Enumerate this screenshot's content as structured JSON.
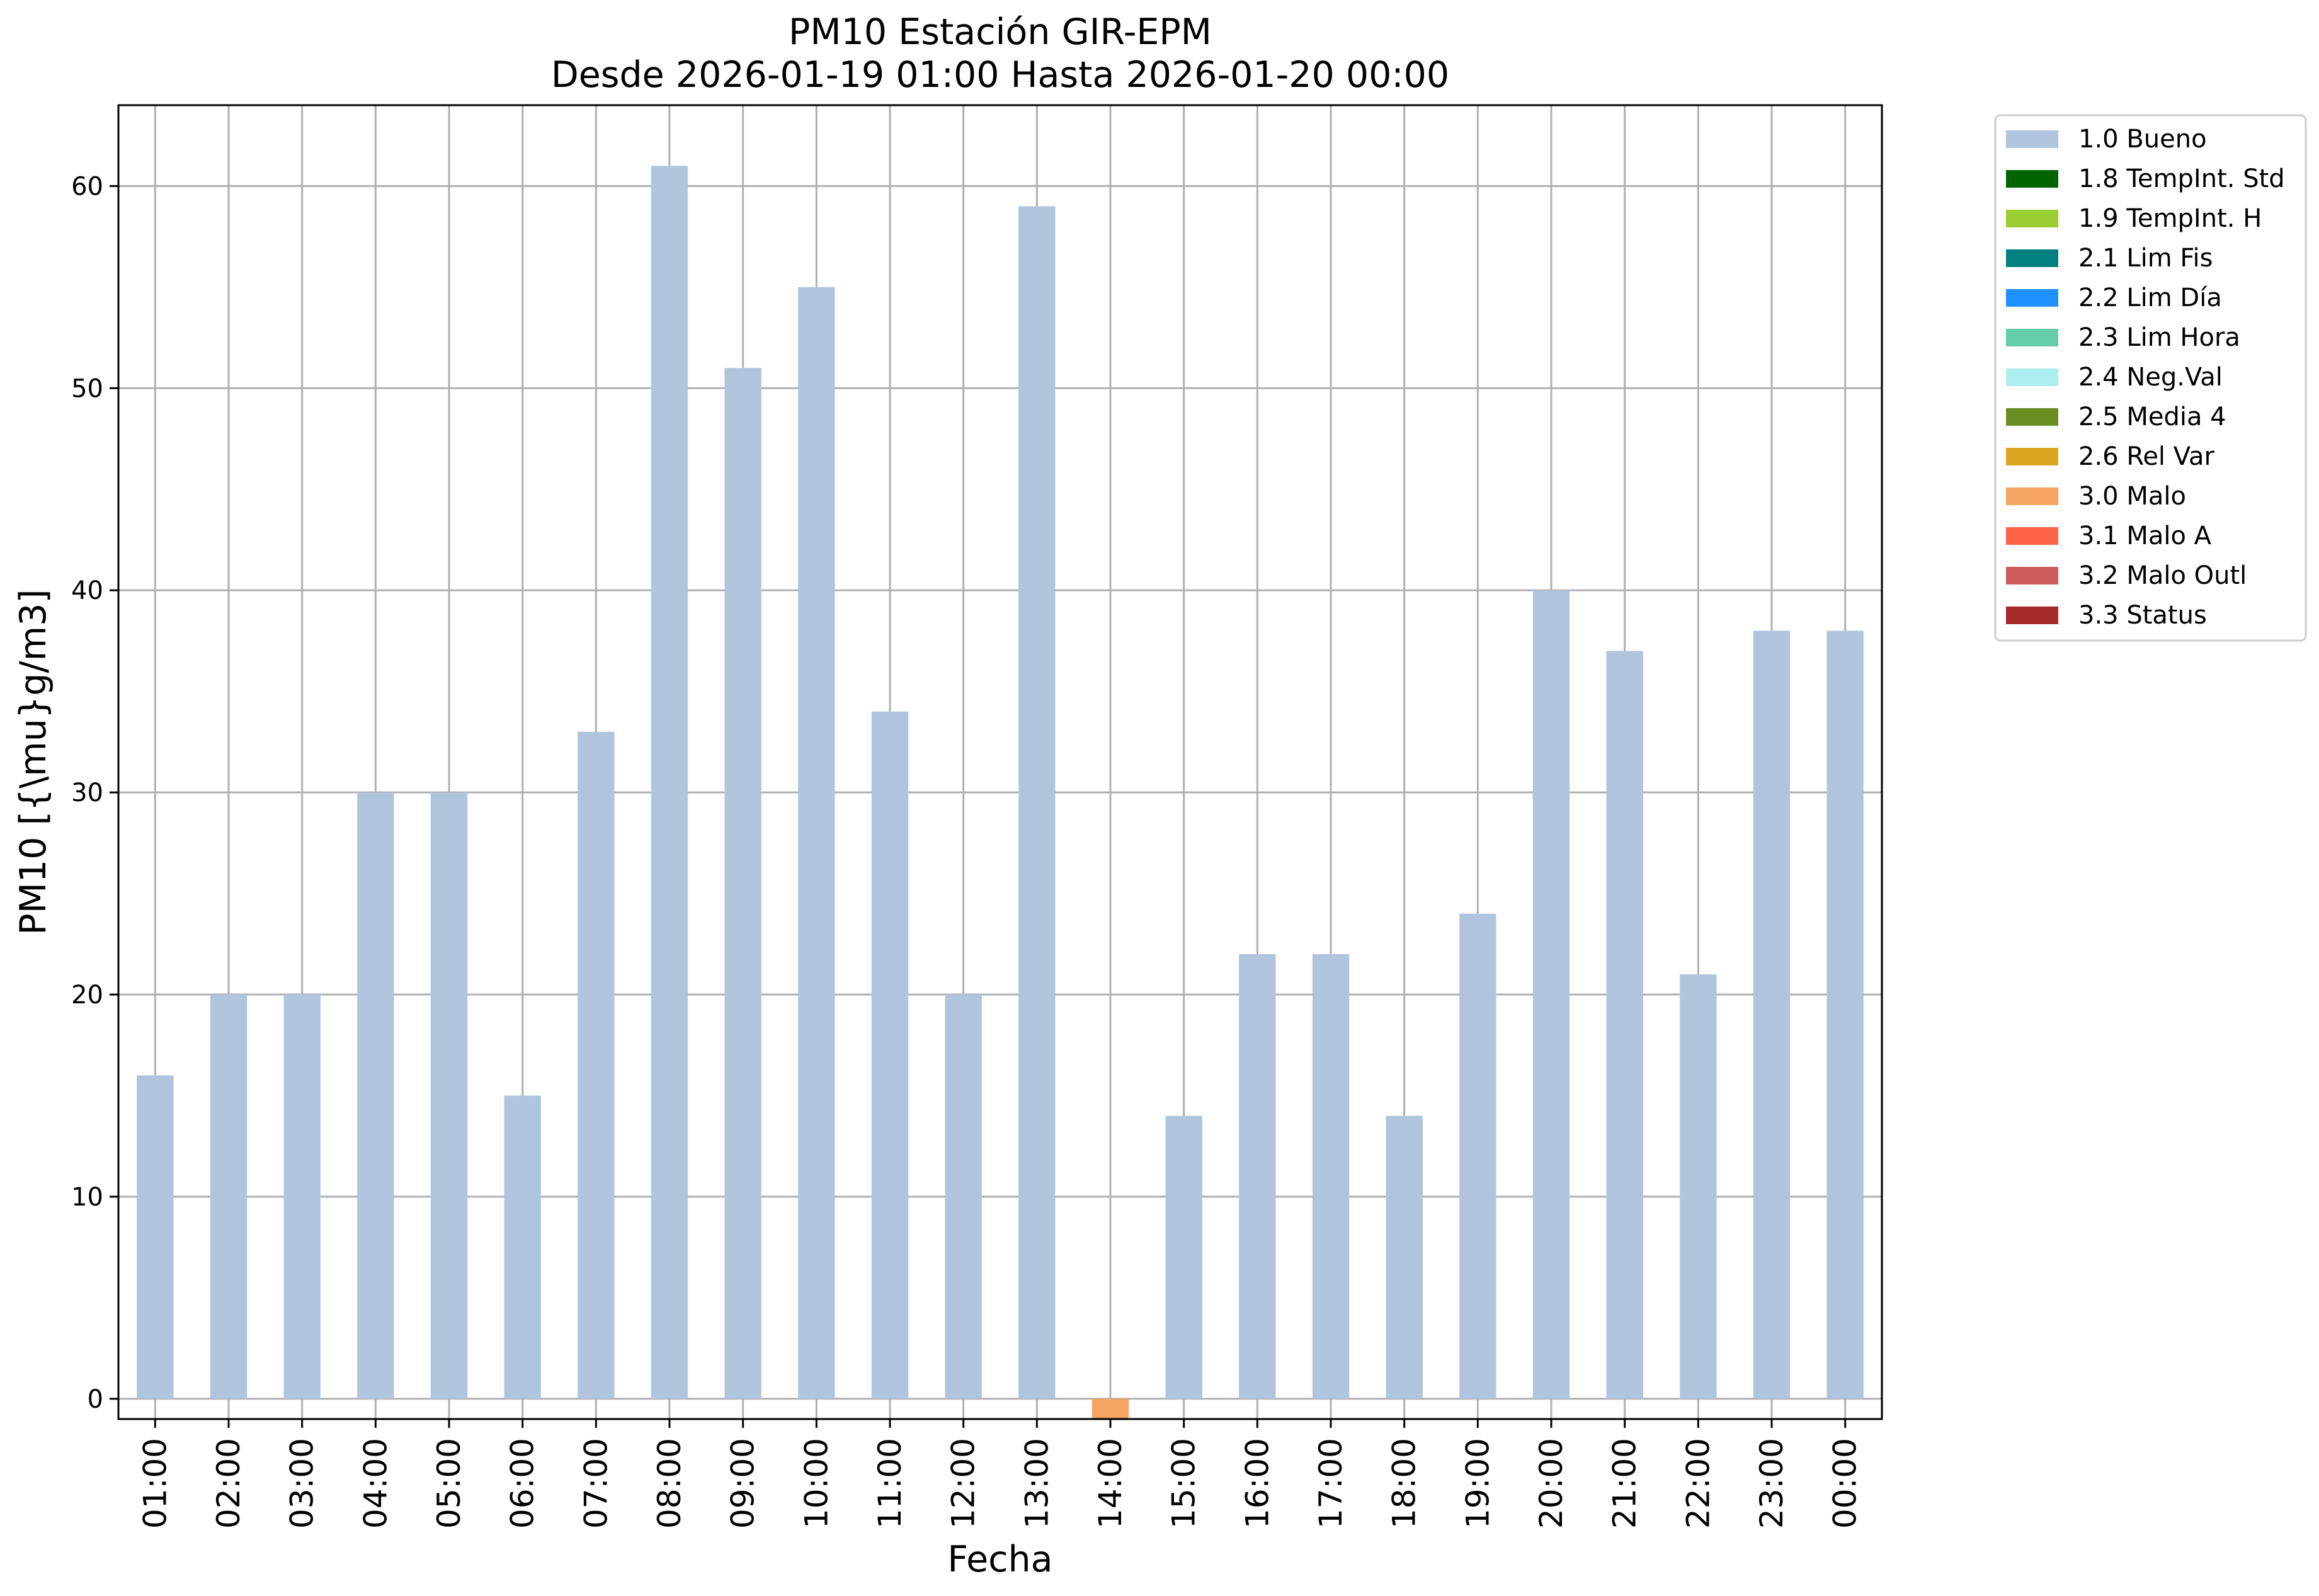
{
  "chart_data": {
    "type": "bar",
    "title": "PM10 Estación GIR-EPM",
    "subtitle": "Desde 2026-01-19 01:00 Hasta 2026-01-20 00:00",
    "xlabel": "Fecha",
    "ylabel": "PM10 [{\\mu}g/m3]",
    "ylim": [
      -1,
      64
    ],
    "yticks": [
      0,
      10,
      20,
      30,
      40,
      50,
      60
    ],
    "grid": true,
    "legend_position": "outside-top-right",
    "categories": [
      "01:00",
      "02:00",
      "03:00",
      "04:00",
      "05:00",
      "06:00",
      "07:00",
      "08:00",
      "09:00",
      "10:00",
      "11:00",
      "12:00",
      "13:00",
      "14:00",
      "15:00",
      "16:00",
      "17:00",
      "18:00",
      "19:00",
      "20:00",
      "21:00",
      "22:00",
      "23:00",
      "00:00"
    ],
    "values": [
      16,
      20,
      20,
      30,
      30,
      15,
      33,
      61,
      51,
      55,
      34,
      20,
      59,
      -1,
      14,
      22,
      22,
      14,
      24,
      40,
      37,
      21,
      38,
      38
    ],
    "bar_flags": [
      "1.0 Bueno",
      "1.0 Bueno",
      "1.0 Bueno",
      "1.0 Bueno",
      "1.0 Bueno",
      "1.0 Bueno",
      "1.0 Bueno",
      "1.0 Bueno",
      "1.0 Bueno",
      "1.0 Bueno",
      "1.0 Bueno",
      "1.0 Bueno",
      "1.0 Bueno",
      "3.0 Malo",
      "1.0 Bueno",
      "1.0 Bueno",
      "1.0 Bueno",
      "1.0 Bueno",
      "1.0 Bueno",
      "1.0 Bueno",
      "1.0 Bueno",
      "1.0 Bueno",
      "1.0 Bueno",
      "1.0 Bueno"
    ],
    "legend": [
      {
        "label": "1.0 Bueno",
        "color": "#b0c4de"
      },
      {
        "label": "1.8 TempInt. Std",
        "color": "#006400"
      },
      {
        "label": "1.9 TempInt. H",
        "color": "#9acd32"
      },
      {
        "label": "2.1 Lim Fis",
        "color": "#008080"
      },
      {
        "label": "2.2 Lim Día",
        "color": "#1e90ff"
      },
      {
        "label": "2.3 Lim Hora",
        "color": "#66cdaa"
      },
      {
        "label": "2.4 Neg.Val",
        "color": "#afeeee"
      },
      {
        "label": "2.5 Media 4",
        "color": "#6b8e23"
      },
      {
        "label": "2.6 Rel Var",
        "color": "#daa520"
      },
      {
        "label": "3.0 Malo",
        "color": "#f4a460"
      },
      {
        "label": "3.1 Malo A",
        "color": "#ff6347"
      },
      {
        "label": "3.2 Malo Outl",
        "color": "#cd5c5c"
      },
      {
        "label": "3.3 Status",
        "color": "#a52a2a"
      }
    ]
  }
}
